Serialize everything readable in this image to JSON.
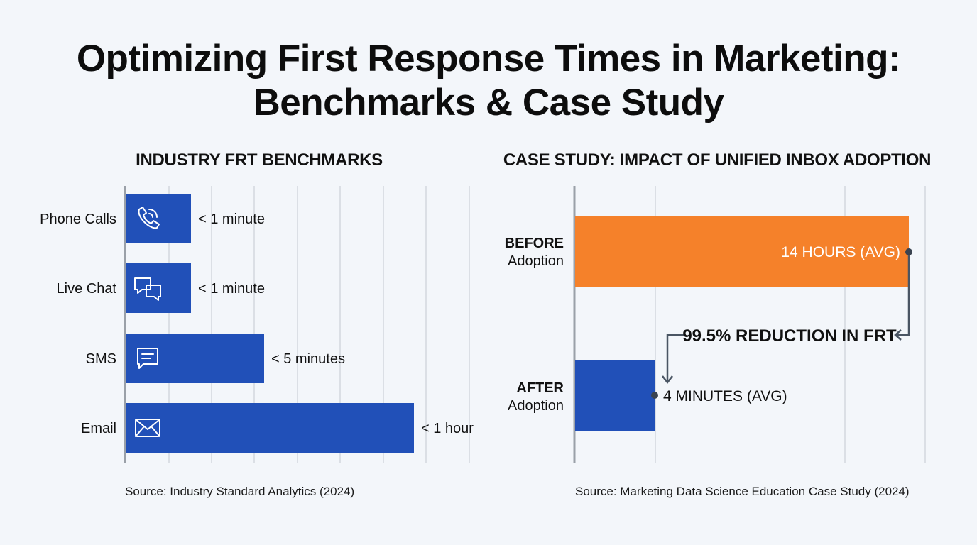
{
  "title_line1": "Optimizing First Response Times in Marketing:",
  "title_line2": "Benchmarks & Case Study",
  "colors": {
    "bar_blue": "#2150b8",
    "bar_orange": "#f5812a",
    "grid": "#d3d7de",
    "axis": "#9aa0a8"
  },
  "chart_data": [
    {
      "type": "bar",
      "orientation": "horizontal",
      "title": "INDUSTRY FRT BENCHMARKS",
      "categories": [
        "Phone Calls",
        "Live Chat",
        "SMS",
        "Email"
      ],
      "icons": [
        "phone-icon",
        "chat-icon",
        "sms-icon",
        "email-icon"
      ],
      "values": [
        1,
        1,
        5,
        60
      ],
      "value_unit": "minutes",
      "data_labels": [
        "< 1 minute",
        "< 1 minute",
        "< 5 minutes",
        "< 1 hour"
      ],
      "grid": true,
      "source": "Source: Industry Standard Analytics (2024)"
    },
    {
      "type": "bar",
      "orientation": "horizontal",
      "title": "CASE STUDY: IMPACT OF UNIFIED INBOX ADOPTION",
      "categories": [
        {
          "bold": "BEFORE",
          "sub": "Adoption"
        },
        {
          "bold": "AFTER",
          "sub": "Adoption"
        }
      ],
      "values_minutes": [
        840,
        4
      ],
      "data_labels": [
        "14 HOURS (AVG)",
        "4 MINUTES (AVG)"
      ],
      "annotation": "99.5% REDUCTION IN FRT",
      "grid": true,
      "source": "Source: Marketing Data Science Education Case Study (2024)"
    }
  ]
}
